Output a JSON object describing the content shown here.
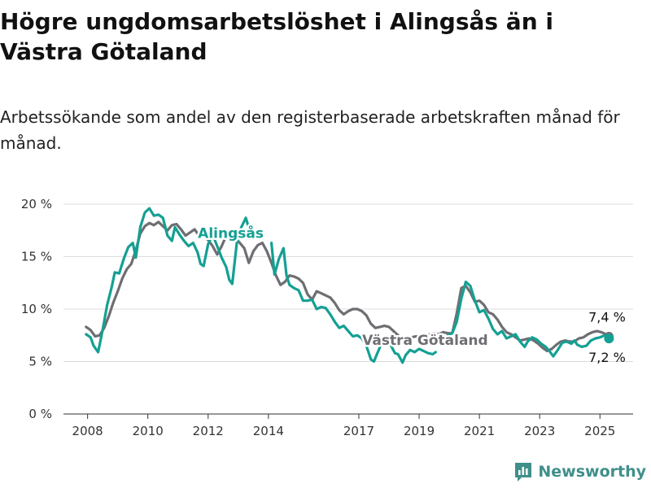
{
  "header": {
    "title": "Högre ungdomsarbetslöshet i Alingsås än i Västra Götaland",
    "subtitle": "Arbetssökande som andel av den registerbaserade arbetskraften månad för månad."
  },
  "brand": {
    "name": "Newsworthy",
    "icon": "bar-chart-logo-icon"
  },
  "colors": {
    "alingsas": "#14a093",
    "vastra": "#6e6e73",
    "grid": "#dcdcdc",
    "axis": "#333333"
  },
  "chart_data": {
    "type": "line",
    "title": "Högre ungdomsarbetslöshet i Alingsås än i Västra Götaland",
    "subtitle": "Arbetssökande som andel av den registerbaserade arbetskraften månad för månad.",
    "xlabel": "",
    "ylabel": "",
    "xlim": [
      2007.2,
      2026.1
    ],
    "ylim": [
      0,
      20
    ],
    "grid": true,
    "legend": "inline",
    "x_ticks": [
      {
        "value": 2008,
        "label": "2008"
      },
      {
        "value": 2010,
        "label": "2010"
      },
      {
        "value": 2012,
        "label": "2012"
      },
      {
        "value": 2014,
        "label": "2014"
      },
      {
        "value": 2017,
        "label": "2017"
      },
      {
        "value": 2019,
        "label": "2019"
      },
      {
        "value": 2021,
        "label": "2021"
      },
      {
        "value": 2023,
        "label": "2023"
      },
      {
        "value": 2025,
        "label": "2025"
      }
    ],
    "y_ticks": [
      {
        "value": 0,
        "label": "0 %"
      },
      {
        "value": 5,
        "label": "5 %"
      },
      {
        "value": 10,
        "label": "10 %"
      },
      {
        "value": 15,
        "label": "15 %"
      },
      {
        "value": 20,
        "label": "20 %"
      }
    ],
    "series": [
      {
        "name": "Västra Götaland",
        "color": "#6e6e73",
        "label_at": [
          2019.2,
          6.6
        ],
        "end_label": "7,4 %",
        "points": [
          [
            2007.95,
            8.3
          ],
          [
            2008.1,
            8.0
          ],
          [
            2008.25,
            7.4
          ],
          [
            2008.4,
            7.5
          ],
          [
            2008.55,
            8.2
          ],
          [
            2008.7,
            9.3
          ],
          [
            2008.85,
            10.6
          ],
          [
            2009.0,
            11.7
          ],
          [
            2009.15,
            12.9
          ],
          [
            2009.3,
            13.8
          ],
          [
            2009.45,
            14.3
          ],
          [
            2009.6,
            15.6
          ],
          [
            2009.75,
            17.2
          ],
          [
            2009.9,
            17.9
          ],
          [
            2010.05,
            18.2
          ],
          [
            2010.2,
            18.0
          ],
          [
            2010.35,
            18.3
          ],
          [
            2010.5,
            17.9
          ],
          [
            2010.65,
            17.5
          ],
          [
            2010.8,
            18.0
          ],
          [
            2010.95,
            18.1
          ],
          [
            2011.1,
            17.6
          ],
          [
            2011.25,
            17.0
          ],
          [
            2011.4,
            17.3
          ],
          [
            2011.55,
            17.6
          ],
          [
            2011.7,
            17.0
          ],
          [
            2011.85,
            16.9
          ],
          [
            2012.0,
            16.6
          ],
          [
            2012.15,
            16.0
          ],
          [
            2012.3,
            15.2
          ],
          [
            2012.45,
            16.0
          ],
          [
            2012.6,
            17.0
          ],
          [
            2012.75,
            17.2
          ],
          [
            2012.9,
            16.8
          ],
          [
            2013.05,
            16.3
          ],
          [
            2013.2,
            15.8
          ],
          [
            2013.35,
            14.4
          ],
          [
            2013.5,
            15.5
          ],
          [
            2013.65,
            16.1
          ],
          [
            2013.8,
            16.3
          ],
          [
            2013.95,
            15.5
          ],
          [
            2014.1,
            14.4
          ],
          [
            2014.25,
            13.2
          ],
          [
            2014.4,
            12.3
          ],
          [
            2014.55,
            12.6
          ],
          [
            2014.7,
            13.2
          ],
          [
            2014.85,
            13.1
          ],
          [
            2015.0,
            12.9
          ],
          [
            2015.15,
            12.5
          ],
          [
            2015.3,
            11.4
          ],
          [
            2015.45,
            10.9
          ],
          [
            2015.6,
            11.7
          ],
          [
            2015.75,
            11.5
          ],
          [
            2015.9,
            11.3
          ],
          [
            2016.05,
            11.1
          ],
          [
            2016.2,
            10.6
          ],
          [
            2016.35,
            9.9
          ],
          [
            2016.5,
            9.5
          ],
          [
            2016.65,
            9.8
          ],
          [
            2016.8,
            10.0
          ],
          [
            2016.95,
            10.0
          ],
          [
            2017.1,
            9.8
          ],
          [
            2017.25,
            9.4
          ],
          [
            2017.4,
            8.6
          ],
          [
            2017.55,
            8.2
          ],
          [
            2017.7,
            8.3
          ],
          [
            2017.85,
            8.4
          ],
          [
            2018.0,
            8.3
          ],
          [
            2018.15,
            7.9
          ],
          [
            2018.3,
            7.5
          ],
          [
            2018.45,
            7.2
          ],
          [
            2018.6,
            7.2
          ],
          [
            2018.75,
            7.3
          ],
          [
            2018.9,
            7.4
          ],
          [
            2019.05,
            7.3
          ],
          [
            2019.2,
            7.3
          ],
          [
            2019.35,
            7.6
          ],
          [
            2019.5,
            7.7
          ],
          [
            2019.65,
            7.6
          ],
          [
            2019.8,
            7.8
          ],
          [
            2019.95,
            7.7
          ],
          [
            2020.1,
            7.7
          ],
          [
            2020.25,
            9.6
          ],
          [
            2020.4,
            12.0
          ],
          [
            2020.55,
            12.2
          ],
          [
            2020.7,
            11.6
          ],
          [
            2020.85,
            10.7
          ],
          [
            2021.0,
            10.8
          ],
          [
            2021.15,
            10.4
          ],
          [
            2021.3,
            9.7
          ],
          [
            2021.45,
            9.5
          ],
          [
            2021.6,
            9.0
          ],
          [
            2021.75,
            8.3
          ],
          [
            2021.9,
            7.8
          ],
          [
            2022.05,
            7.6
          ],
          [
            2022.2,
            7.3
          ],
          [
            2022.35,
            7.0
          ],
          [
            2022.5,
            7.1
          ],
          [
            2022.65,
            7.2
          ],
          [
            2022.8,
            7.0
          ],
          [
            2022.95,
            6.7
          ],
          [
            2023.1,
            6.3
          ],
          [
            2023.25,
            6.0
          ],
          [
            2023.4,
            6.2
          ],
          [
            2023.55,
            6.6
          ],
          [
            2023.7,
            6.9
          ],
          [
            2023.85,
            7.0
          ],
          [
            2024.0,
            6.9
          ],
          [
            2024.15,
            6.9
          ],
          [
            2024.3,
            7.2
          ],
          [
            2024.45,
            7.3
          ],
          [
            2024.6,
            7.6
          ],
          [
            2024.75,
            7.8
          ],
          [
            2024.9,
            7.9
          ],
          [
            2025.05,
            7.8
          ],
          [
            2025.2,
            7.6
          ],
          [
            2025.3,
            7.4
          ]
        ]
      },
      {
        "name": "Alingsås",
        "color": "#14a093",
        "label_at": [
          2012.75,
          16.8
        ],
        "end_label": "7,2 %",
        "points": [
          [
            2007.95,
            7.6
          ],
          [
            2008.1,
            7.3
          ],
          [
            2008.2,
            6.5
          ],
          [
            2008.35,
            5.9
          ],
          [
            2008.5,
            8.0
          ],
          [
            2008.65,
            10.4
          ],
          [
            2008.8,
            12.1
          ],
          [
            2008.9,
            13.5
          ],
          [
            2009.05,
            13.4
          ],
          [
            2009.2,
            14.8
          ],
          [
            2009.35,
            15.9
          ],
          [
            2009.5,
            16.3
          ],
          [
            2009.6,
            14.9
          ],
          [
            2009.75,
            17.8
          ],
          [
            2009.9,
            19.2
          ],
          [
            2010.05,
            19.6
          ],
          [
            2010.2,
            18.9
          ],
          [
            2010.35,
            19.0
          ],
          [
            2010.5,
            18.7
          ],
          [
            2010.65,
            17.0
          ],
          [
            2010.8,
            16.5
          ],
          [
            2010.9,
            17.8
          ],
          [
            2011.05,
            17.1
          ],
          [
            2011.2,
            16.5
          ],
          [
            2011.35,
            16.0
          ],
          [
            2011.5,
            16.3
          ],
          [
            2011.65,
            15.4
          ],
          [
            2011.75,
            14.3
          ],
          [
            2011.85,
            14.1
          ],
          [
            2012.0,
            16.2
          ],
          [
            2012.15,
            17.1
          ],
          [
            2012.3,
            16.0
          ],
          [
            2012.45,
            14.9
          ],
          [
            2012.6,
            14.0
          ],
          [
            2012.7,
            12.8
          ],
          [
            2012.8,
            12.4
          ],
          [
            2012.95,
            16.3
          ],
          [
            2013.1,
            17.8
          ],
          [
            2013.25,
            18.7
          ],
          [
            2013.4,
            17.2
          ]
        ]
      },
      {
        "name": "Alingsås",
        "color": "#14a093",
        "points": [
          [
            2014.1,
            16.3
          ],
          [
            2014.2,
            13.3
          ],
          [
            2014.35,
            14.8
          ],
          [
            2014.5,
            15.8
          ],
          [
            2014.6,
            13.2
          ],
          [
            2014.7,
            12.3
          ],
          [
            2014.85,
            12.0
          ],
          [
            2015.0,
            11.8
          ],
          [
            2015.15,
            10.8
          ],
          [
            2015.3,
            10.8
          ],
          [
            2015.45,
            10.9
          ],
          [
            2015.6,
            10.0
          ],
          [
            2015.75,
            10.2
          ],
          [
            2015.9,
            10.1
          ],
          [
            2016.05,
            9.5
          ],
          [
            2016.2,
            8.8
          ],
          [
            2016.35,
            8.2
          ],
          [
            2016.5,
            8.4
          ],
          [
            2016.65,
            7.9
          ],
          [
            2016.8,
            7.4
          ],
          [
            2016.95,
            7.5
          ],
          [
            2017.1,
            7.2
          ],
          [
            2017.25,
            6.5
          ],
          [
            2017.4,
            5.2
          ],
          [
            2017.5,
            5.0
          ],
          [
            2017.6,
            5.7
          ],
          [
            2017.75,
            6.7
          ],
          [
            2017.9,
            7.2
          ],
          [
            2018.05,
            6.6
          ],
          [
            2018.2,
            5.8
          ],
          [
            2018.3,
            5.7
          ],
          [
            2018.45,
            4.9
          ],
          [
            2018.55,
            5.6
          ],
          [
            2018.7,
            6.1
          ],
          [
            2018.85,
            5.9
          ],
          [
            2019.0,
            6.2
          ],
          [
            2019.15,
            6.0
          ],
          [
            2019.3,
            5.8
          ],
          [
            2019.45,
            5.7
          ],
          [
            2019.55,
            5.9
          ]
        ]
      },
      {
        "name": "Alingsås",
        "color": "#14a093",
        "points": [
          [
            2019.95,
            7.5
          ],
          [
            2020.1,
            7.7
          ],
          [
            2020.25,
            8.8
          ],
          [
            2020.4,
            11.0
          ],
          [
            2020.55,
            12.6
          ],
          [
            2020.7,
            12.2
          ],
          [
            2020.85,
            10.8
          ],
          [
            2021.0,
            9.7
          ],
          [
            2021.15,
            9.9
          ],
          [
            2021.3,
            9.1
          ],
          [
            2021.45,
            8.1
          ],
          [
            2021.6,
            7.6
          ],
          [
            2021.75,
            7.9
          ],
          [
            2021.9,
            7.2
          ],
          [
            2022.05,
            7.4
          ],
          [
            2022.2,
            7.6
          ],
          [
            2022.35,
            6.9
          ],
          [
            2022.5,
            6.4
          ],
          [
            2022.6,
            6.9
          ],
          [
            2022.75,
            7.3
          ],
          [
            2022.9,
            7.1
          ],
          [
            2023.05,
            6.7
          ],
          [
            2023.2,
            6.4
          ],
          [
            2023.35,
            5.9
          ],
          [
            2023.45,
            5.5
          ],
          [
            2023.6,
            6.1
          ],
          [
            2023.75,
            6.8
          ],
          [
            2023.9,
            6.9
          ],
          [
            2024.05,
            6.7
          ],
          [
            2024.15,
            7.0
          ],
          [
            2024.25,
            6.6
          ],
          [
            2024.4,
            6.4
          ],
          [
            2024.55,
            6.5
          ],
          [
            2024.7,
            7.0
          ],
          [
            2024.85,
            7.2
          ],
          [
            2025.0,
            7.3
          ],
          [
            2025.15,
            7.5
          ],
          [
            2025.3,
            7.2
          ]
        ]
      }
    ]
  }
}
